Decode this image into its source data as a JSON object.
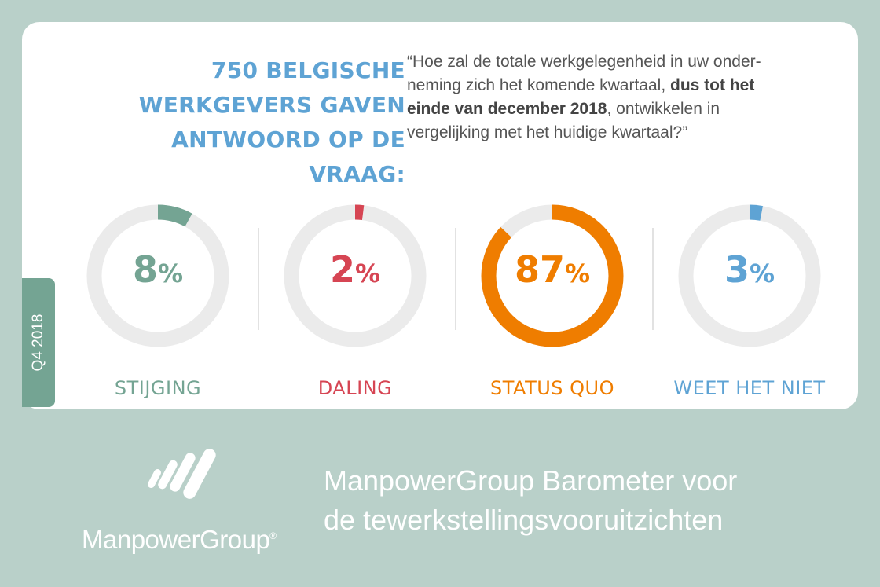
{
  "header": {
    "intro_lines": [
      "750 BELGISCHE",
      "WERKGEVERS GAVEN",
      "ANTWOORD OP DE VRAAG:"
    ],
    "question_lines": [
      {
        "before": "“Hoe zal de totale werkgelegenheid in uw onder-",
        "bold": "",
        "after": ""
      },
      {
        "before": "neming zich het komende kwartaal, ",
        "bold": "dus tot het",
        "after": ""
      },
      {
        "before": "",
        "bold": "einde van december 2018",
        "after": ", ontwikkelen in"
      },
      {
        "before": "vergelijking met het huidige kwartaal?”",
        "bold": "",
        "after": ""
      }
    ]
  },
  "period_tab": "Q4 2018",
  "unit": "%",
  "chart_data": {
    "type": "pie",
    "categories": [
      "STIJGING",
      "DALING",
      "STATUS QUO",
      "WEET HET NIET"
    ],
    "values": [
      8,
      2,
      87,
      3
    ],
    "colors": [
      "#74a493",
      "#d64553",
      "#ef7d00",
      "#5ea3d4"
    ],
    "track_color": "#ebebeb"
  },
  "footer": {
    "logo_text": "ManpowerGroup",
    "logo_mark": "®",
    "title_lines": [
      "ManpowerGroup Barometer voor",
      "de tewerkstellingsvooruitzichten"
    ]
  }
}
